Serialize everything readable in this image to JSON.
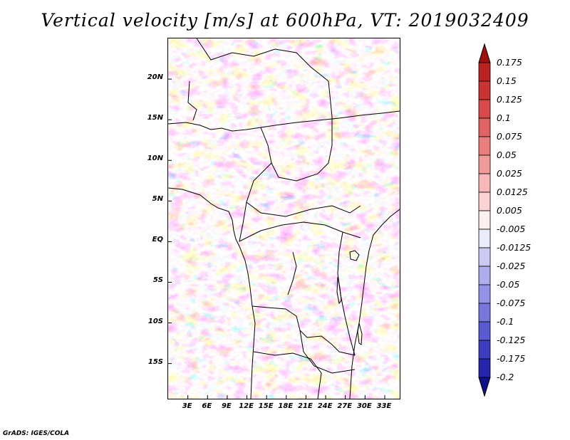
{
  "title": "Vertical velocity [m/s] at 600hPa, VT: 2019032409",
  "footer": "GrADS: IGES/COLA",
  "map": {
    "variable": "Vertical velocity",
    "units": "m/s",
    "level": "600hPa",
    "valid_time": "2019032409",
    "lon_range": [
      0,
      35.5
    ],
    "lat_range": [
      -19.5,
      25
    ],
    "lat_ticks": [
      {
        "value": 20,
        "label": "20N"
      },
      {
        "value": 15,
        "label": "15N"
      },
      {
        "value": 10,
        "label": "10N"
      },
      {
        "value": 5,
        "label": "5N"
      },
      {
        "value": 0,
        "label": "EQ"
      },
      {
        "value": -5,
        "label": "5S"
      },
      {
        "value": -10,
        "label": "10S"
      },
      {
        "value": -15,
        "label": "15S"
      }
    ],
    "lon_ticks": [
      {
        "value": 3,
        "label": "3E"
      },
      {
        "value": 6,
        "label": "6E"
      },
      {
        "value": 9,
        "label": "9E"
      },
      {
        "value": 12,
        "label": "12E"
      },
      {
        "value": 15,
        "label": "15E"
      },
      {
        "value": 18,
        "label": "18E"
      },
      {
        "value": 21,
        "label": "21E"
      },
      {
        "value": 24,
        "label": "24E"
      },
      {
        "value": 27,
        "label": "27E"
      },
      {
        "value": 30,
        "label": "30E"
      },
      {
        "value": 33,
        "label": "33E"
      }
    ]
  },
  "colorbar": {
    "levels": [
      {
        "label": "0.175",
        "color": "#b11a1a"
      },
      {
        "label": "0.15",
        "color": "#c42a2a"
      },
      {
        "label": "0.125",
        "color": "#d23c3c"
      },
      {
        "label": "0.1",
        "color": "#dd5555"
      },
      {
        "label": "0.075",
        "color": "#e67070"
      },
      {
        "label": "0.05",
        "color": "#ee8c8c"
      },
      {
        "label": "0.025",
        "color": "#f5aaaa"
      },
      {
        "label": "0.0125",
        "color": "#f9c6c6"
      },
      {
        "label": "0.005",
        "color": "#fce0e0"
      },
      {
        "label": "-0.005",
        "color": "#ffffff"
      },
      {
        "label": "-0.0125",
        "color": "#d7d7f6"
      },
      {
        "label": "-0.025",
        "color": "#bcbcf0"
      },
      {
        "label": "-0.05",
        "color": "#a0a0ea"
      },
      {
        "label": "-0.075",
        "color": "#8484e2"
      },
      {
        "label": "-0.1",
        "color": "#6868d8"
      },
      {
        "label": "-0.125",
        "color": "#4c4cca"
      },
      {
        "label": "-0.175",
        "color": "#2e2eb8"
      },
      {
        "label": "-0.2",
        "color": "#1a1aa0"
      }
    ],
    "top_arrow_color": "#a01010",
    "bottom_arrow_color": "#10108a"
  }
}
